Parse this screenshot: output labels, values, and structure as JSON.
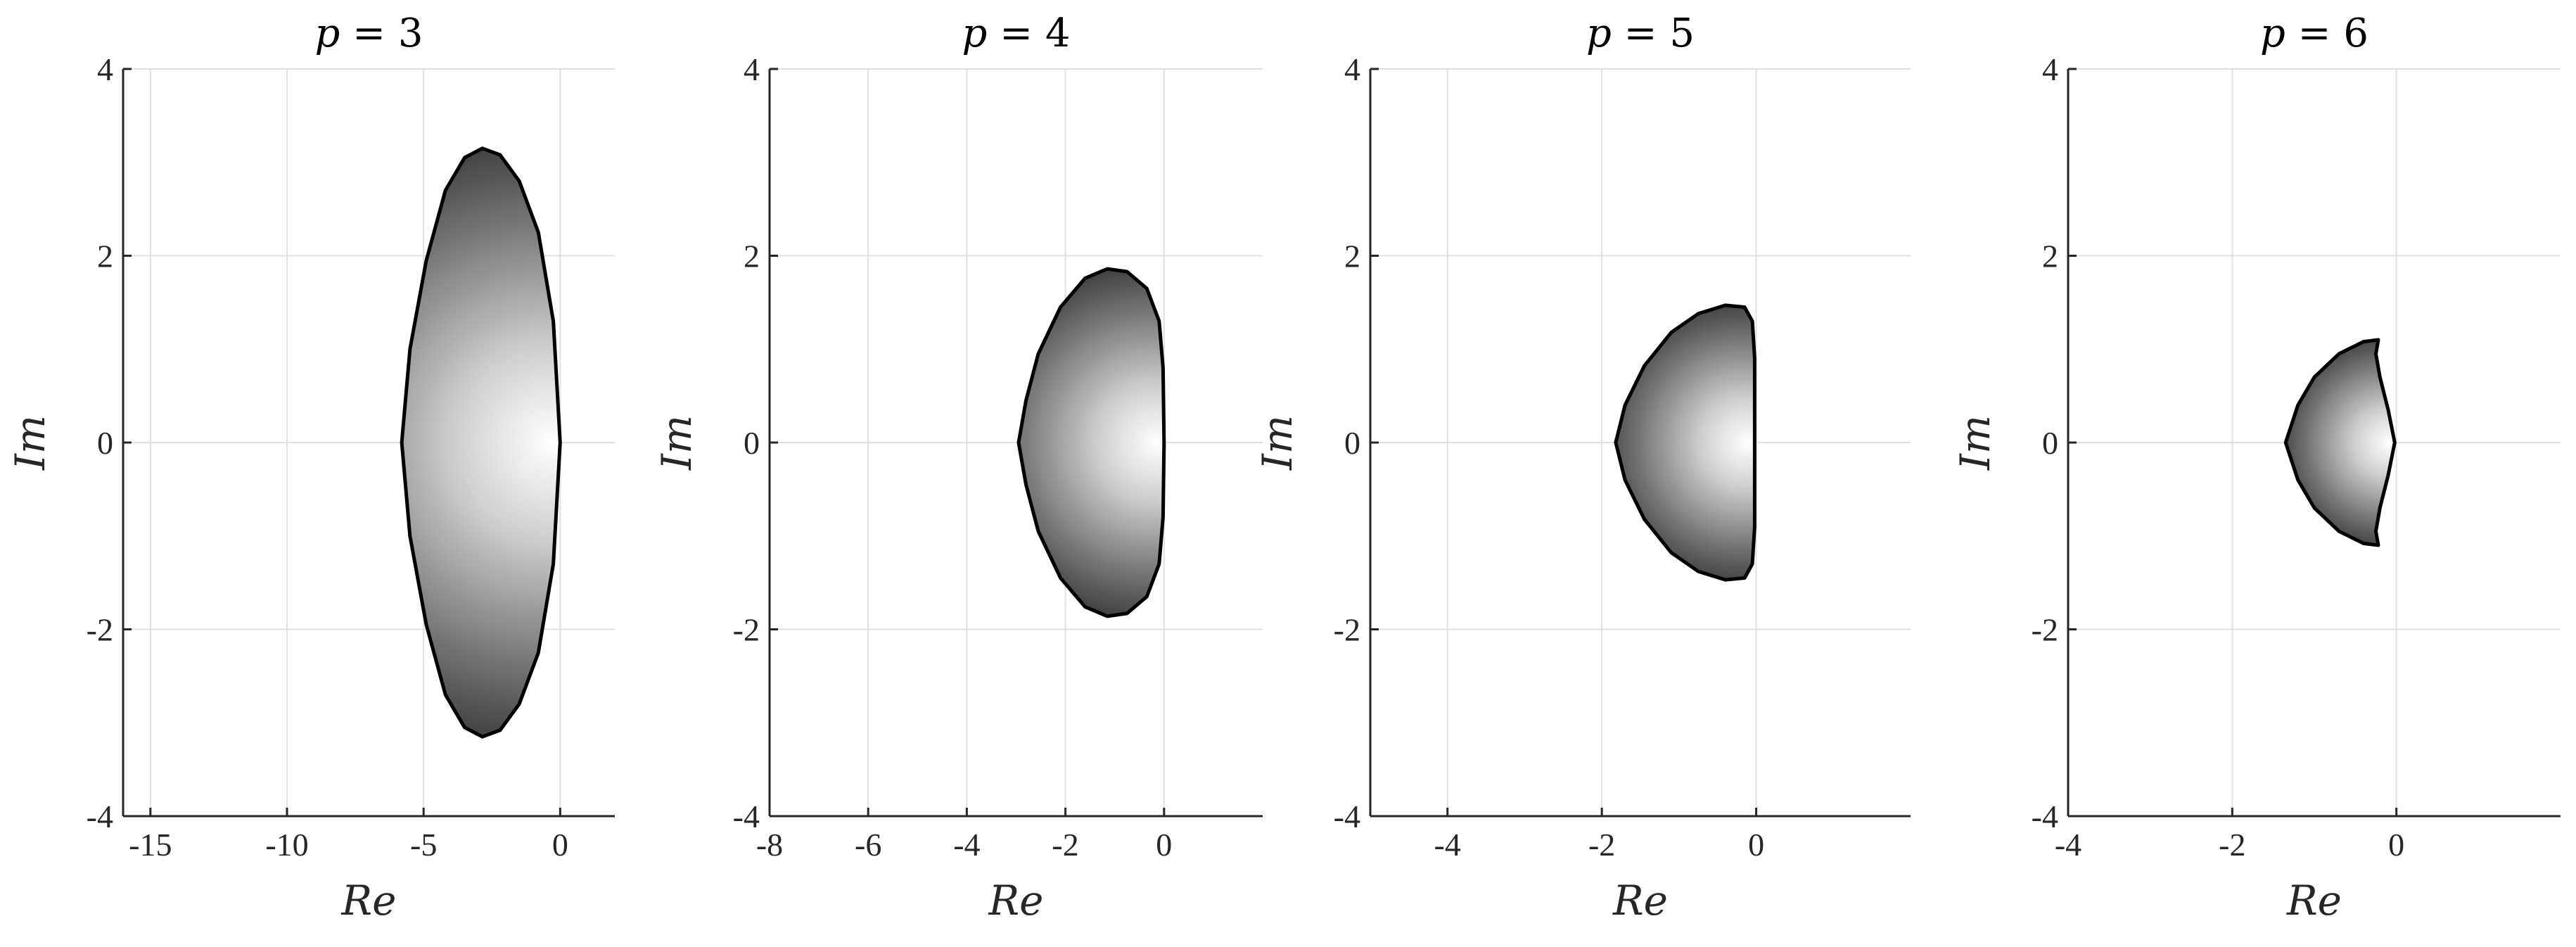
{
  "chart_data": [
    {
      "type": "area",
      "title": "p = 3",
      "title_var": "p",
      "title_rest": " = 3",
      "xlabel": "Re",
      "ylabel": "Im",
      "xlim": [
        -16,
        2
      ],
      "ylim": [
        -4,
        4
      ],
      "xticks": [
        -15,
        -10,
        -5,
        0
      ],
      "xtick_labels": [
        "-15",
        "-10",
        "-5",
        "0"
      ],
      "yticks": [
        -4,
        -2,
        0,
        2,
        4
      ],
      "ytick_labels": [
        "-4",
        "-2",
        "0",
        "2",
        "4"
      ],
      "grid": true,
      "region": {
        "x": [
          -0.0,
          -0.25,
          -0.8,
          -1.5,
          -2.2,
          -2.85,
          -3.5,
          -4.2,
          -4.9,
          -5.5,
          -5.8,
          -5.5,
          -4.9,
          -4.2,
          -3.5,
          -2.85,
          -2.2,
          -1.5,
          -0.8,
          -0.25,
          -0.0
        ],
        "y": [
          0,
          1.3,
          2.25,
          2.8,
          3.08,
          3.15,
          3.05,
          2.7,
          1.95,
          1.0,
          0,
          -1.0,
          -1.95,
          -2.7,
          -3.05,
          -3.15,
          -3.08,
          -2.8,
          -2.25,
          -1.3,
          0
        ]
      }
    },
    {
      "type": "area",
      "title": "p = 4",
      "title_var": "p",
      "title_rest": " = 4",
      "xlabel": "Re",
      "ylabel": "Im",
      "xlim": [
        -8,
        2
      ],
      "ylim": [
        -4,
        4
      ],
      "xticks": [
        -8,
        -6,
        -4,
        -2,
        0
      ],
      "xtick_labels": [
        "-8",
        "-6",
        "-4",
        "-2",
        "0"
      ],
      "yticks": [
        -4,
        -2,
        0,
        2,
        4
      ],
      "ytick_labels": [
        "-4",
        "-2",
        "0",
        "2",
        "4"
      ],
      "grid": true,
      "region": {
        "x": [
          -0.0,
          -0.02,
          -0.1,
          -0.35,
          -0.75,
          -1.15,
          -1.6,
          -2.1,
          -2.55,
          -2.8,
          -2.95,
          -2.8,
          -2.55,
          -2.1,
          -1.6,
          -1.15,
          -0.75,
          -0.35,
          -0.1,
          -0.02,
          -0.0
        ],
        "y": [
          0,
          0.8,
          1.3,
          1.65,
          1.83,
          1.86,
          1.76,
          1.45,
          0.95,
          0.45,
          0,
          -0.45,
          -0.95,
          -1.45,
          -1.76,
          -1.86,
          -1.83,
          -1.65,
          -1.3,
          -0.8,
          0
        ]
      }
    },
    {
      "type": "area",
      "title": "p = 5",
      "title_var": "p",
      "title_rest": " = 5",
      "xlabel": "Re",
      "ylabel": "Im",
      "xlim": [
        -5,
        2
      ],
      "ylim": [
        -4,
        4
      ],
      "xticks": [
        -4,
        -2,
        0
      ],
      "xtick_labels": [
        "-4",
        "-2",
        "0"
      ],
      "yticks": [
        -4,
        -2,
        0,
        2,
        4
      ],
      "ytick_labels": [
        "-4",
        "-2",
        "0",
        "2",
        "4"
      ],
      "grid": true,
      "region": {
        "x": [
          -0.02,
          -0.02,
          -0.05,
          -0.15,
          -0.4,
          -0.75,
          -1.1,
          -1.45,
          -1.7,
          -1.82,
          -1.7,
          -1.45,
          -1.1,
          -0.75,
          -0.4,
          -0.15,
          -0.05,
          -0.02,
          -0.02
        ],
        "y": [
          0,
          0.9,
          1.3,
          1.45,
          1.47,
          1.38,
          1.18,
          0.82,
          0.4,
          0,
          -0.4,
          -0.82,
          -1.18,
          -1.38,
          -1.47,
          -1.45,
          -1.3,
          -0.9,
          0
        ]
      }
    },
    {
      "type": "area",
      "title": "p = 6",
      "title_var": "p",
      "title_rest": " = 6",
      "xlabel": "Re",
      "ylabel": "Im",
      "xlim": [
        -4,
        2
      ],
      "ylim": [
        -4,
        4
      ],
      "xticks": [
        -4,
        -2,
        0
      ],
      "xtick_labels": [
        "-4",
        "-2",
        "0"
      ],
      "yticks": [
        -4,
        -2,
        0,
        2,
        4
      ],
      "ytick_labels": [
        "-4",
        "-2",
        "0",
        "2",
        "4"
      ],
      "grid": true,
      "region": {
        "x": [
          -0.02,
          -0.1,
          -0.2,
          -0.25,
          -0.22,
          -0.4,
          -0.7,
          -1.0,
          -1.2,
          -1.35,
          -1.2,
          -1.0,
          -0.7,
          -0.4,
          -0.22,
          -0.25,
          -0.2,
          -0.1,
          -0.02
        ],
        "y": [
          0,
          0.35,
          0.7,
          0.95,
          1.1,
          1.08,
          0.95,
          0.7,
          0.4,
          0,
          -0.4,
          -0.7,
          -0.95,
          -1.08,
          -1.1,
          -0.95,
          -0.7,
          -0.35,
          0
        ]
      }
    }
  ]
}
